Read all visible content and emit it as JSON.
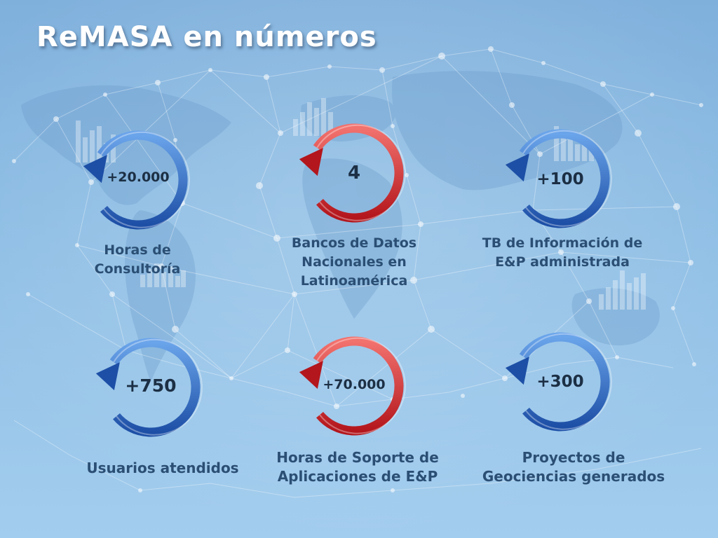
{
  "slide": {
    "title": "ReMASA en números"
  },
  "stats": [
    {
      "value": "+20.000",
      "label_lines": [
        "Horas de",
        "Consultoría"
      ],
      "color": "blue"
    },
    {
      "value": "4",
      "label_lines": [
        "Bancos de Datos",
        "Nacionales en",
        "Latinoamérica"
      ],
      "color": "red"
    },
    {
      "value": "+100",
      "label_lines": [
        "TB de Información de",
        "E&P administrada"
      ],
      "color": "blue"
    },
    {
      "value": "+750",
      "label_lines": [
        "Usuarios atendidos"
      ],
      "color": "blue"
    },
    {
      "value": "+70.000",
      "label_lines": [
        "Horas de Soporte de",
        "Aplicaciones de E&P"
      ],
      "color": "red"
    },
    {
      "value": "+300",
      "label_lines": [
        "Proyectos de",
        "Geociencias generados"
      ],
      "color": "blue"
    }
  ],
  "colors": {
    "blue_light": "#6aa4ea",
    "blue_dark": "#1d4fa6",
    "red_light": "#f2726e",
    "red_dark": "#b3161c"
  },
  "icons": {
    "cycle": "circular-arrow-icon",
    "background": "world-network-map"
  }
}
